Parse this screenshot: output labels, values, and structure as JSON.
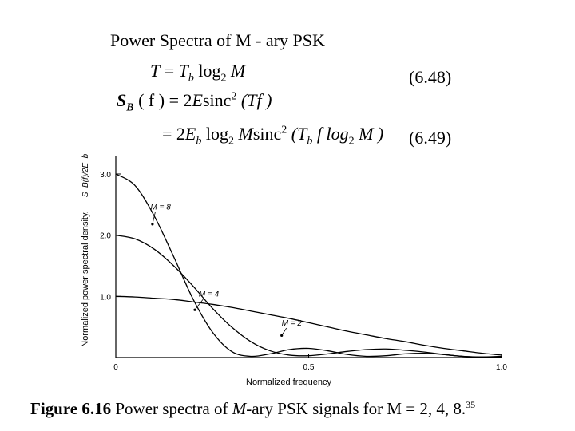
{
  "slide": {
    "title": "Power Spectra of M - ary PSK",
    "eq1": {
      "lhs": "T",
      "rel": " = ",
      "r1": "T",
      "r1sub": "b",
      "r2": " log",
      "r2sub": "2",
      "r3": " M"
    },
    "eq1_number": "(6.48)",
    "eq2": {
      "lhs": "S",
      "lhssub": "B",
      "arg": " ( f ) = 2",
      "e": "E",
      "sinc": "sinc",
      "sup": "2",
      "tail": " (Tf )"
    },
    "eq3": {
      "pre": "= 2",
      "e": "E",
      "esub": "b",
      "log": " log",
      "logsub": "2",
      "m": " M",
      "sinc": "sinc",
      "sup": "2",
      "tail1": " (T",
      "tail1sub": "b",
      "tail2": " f  log",
      "tail2sub": "2",
      "tail3": " M )"
    },
    "eq2_number": "(6.49)",
    "caption": {
      "fig": "Figure 6.16",
      "text1": " Power spectra of ",
      "m": "M",
      "text2": "-ary PSK signals for M = 2, 4, 8.",
      "ref": "35"
    }
  },
  "chart_data": {
    "type": "line",
    "xlabel": "Normalized frequency",
    "ylabel": "Normalized power spectral density,",
    "ylabel_math": "S_B(f)/2E_b",
    "xlim": [
      0,
      1.0
    ],
    "ylim": [
      0,
      3.3
    ],
    "xticks": [
      0,
      0.5,
      1.0
    ],
    "xtick_labels": [
      "0",
      "0.5",
      "1.0"
    ],
    "yticks": [
      1.0,
      2.0,
      3.0
    ],
    "ytick_labels": [
      "1.0",
      "2.0",
      "3.0"
    ],
    "grid": false,
    "x": [
      0,
      0.05,
      0.1,
      0.15,
      0.2,
      0.25,
      0.3,
      0.35,
      0.4,
      0.45,
      0.5,
      0.55,
      0.6,
      0.65,
      0.7,
      0.75,
      0.8,
      0.85,
      0.9,
      0.95,
      1.0
    ],
    "series": [
      {
        "name": "M = 2",
        "values": [
          1.0,
          0.99,
          0.97,
          0.95,
          0.91,
          0.87,
          0.82,
          0.76,
          0.7,
          0.64,
          0.57,
          0.5,
          0.43,
          0.37,
          0.31,
          0.26,
          0.2,
          0.15,
          0.11,
          0.07,
          0.04
        ]
      },
      {
        "name": "M = 4",
        "values": [
          2.0,
          1.94,
          1.77,
          1.5,
          1.17,
          0.81,
          0.5,
          0.26,
          0.11,
          0.04,
          0.03,
          0.06,
          0.1,
          0.13,
          0.14,
          0.12,
          0.09,
          0.05,
          0.02,
          0.01,
          0.02
        ]
      },
      {
        "name": "M = 8",
        "values": [
          3.0,
          2.81,
          2.31,
          1.65,
          0.96,
          0.42,
          0.1,
          0.02,
          0.06,
          0.13,
          0.15,
          0.11,
          0.05,
          0.02,
          0.03,
          0.06,
          0.07,
          0.05,
          0.02,
          0.01,
          0.01
        ]
      }
    ],
    "annotations": [
      "M = 8",
      "M = 4",
      "M = 2"
    ]
  }
}
